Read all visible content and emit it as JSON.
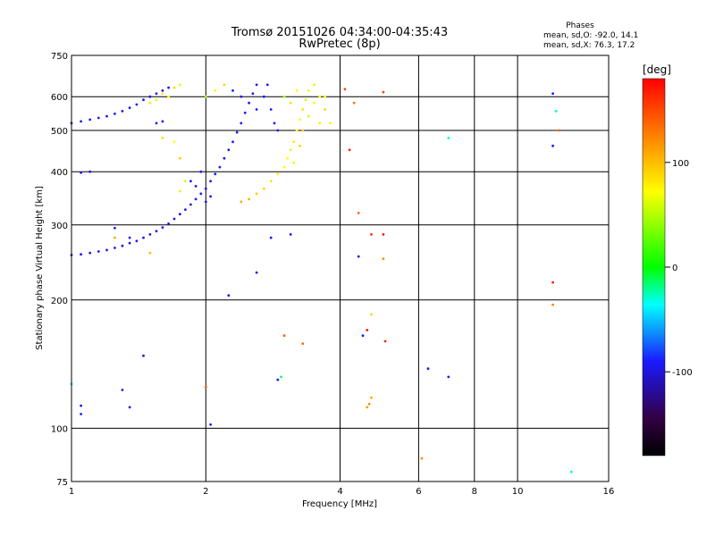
{
  "chart_data": {
    "type": "scatter",
    "title": "Tromsø 20151026 04:34:00-04:35:43",
    "subtitle": "RwPretec (8p)",
    "info_title": "Phases",
    "info_lines": [
      "mean, sd,O: -92.0, 14.1",
      "mean, sd,X:  76.3, 17.2"
    ],
    "xlabel": "Frequency [MHz]",
    "ylabel": "Stationary phase Virtual Height [km]",
    "x_scale": "log",
    "y_scale": "log",
    "xlim": [
      1,
      16
    ],
    "ylim": [
      75,
      750
    ],
    "x_ticks": [
      1,
      2,
      4,
      6,
      8,
      10,
      16
    ],
    "x_tick_labels": [
      "1",
      "2",
      "4",
      "6",
      "8",
      "10",
      "16"
    ],
    "x_grid": [
      2,
      4,
      6,
      8,
      10
    ],
    "y_ticks": [
      75,
      100,
      200,
      300,
      400,
      500,
      600,
      750
    ],
    "y_tick_labels": [
      "75",
      "100",
      "200",
      "300",
      "400",
      "500",
      "600",
      "750"
    ],
    "y_grid": [
      100,
      200,
      300,
      400,
      500,
      600
    ],
    "colorbar": {
      "unit": "[deg]",
      "range": [
        -180,
        180
      ],
      "ticks": [
        100,
        0,
        -100
      ],
      "tick_labels": [
        "100",
        "0",
        "-100"
      ]
    },
    "grid": true,
    "series": [
      {
        "values": [
          {
            "x": 1.0,
            "y": 520,
            "p": -95
          },
          {
            "x": 1.05,
            "y": 525,
            "p": -93
          },
          {
            "x": 1.1,
            "y": 530,
            "p": -90
          },
          {
            "x": 1.15,
            "y": 535,
            "p": -92
          },
          {
            "x": 1.2,
            "y": 540,
            "p": -96
          },
          {
            "x": 1.25,
            "y": 547,
            "p": -90
          },
          {
            "x": 1.3,
            "y": 555,
            "p": -94
          },
          {
            "x": 1.35,
            "y": 565,
            "p": -91
          },
          {
            "x": 1.4,
            "y": 575,
            "p": -93
          },
          {
            "x": 1.45,
            "y": 590,
            "p": -92
          },
          {
            "x": 1.5,
            "y": 600,
            "p": -95
          },
          {
            "x": 1.55,
            "y": 610,
            "p": -90
          },
          {
            "x": 1.6,
            "y": 620,
            "p": -93
          },
          {
            "x": 1.65,
            "y": 630,
            "p": -92
          },
          {
            "x": 1.0,
            "y": 255,
            "p": -92
          },
          {
            "x": 1.05,
            "y": 256,
            "p": -95
          },
          {
            "x": 1.1,
            "y": 258,
            "p": -90
          },
          {
            "x": 1.15,
            "y": 260,
            "p": -93
          },
          {
            "x": 1.2,
            "y": 262,
            "p": -91
          },
          {
            "x": 1.25,
            "y": 265,
            "p": -94
          },
          {
            "x": 1.3,
            "y": 268,
            "p": -92
          },
          {
            "x": 1.35,
            "y": 272,
            "p": -96
          },
          {
            "x": 1.4,
            "y": 275,
            "p": -90
          },
          {
            "x": 1.45,
            "y": 280,
            "p": -93
          },
          {
            "x": 1.5,
            "y": 285,
            "p": -92
          },
          {
            "x": 1.55,
            "y": 290,
            "p": -95
          },
          {
            "x": 1.6,
            "y": 296,
            "p": -91
          },
          {
            "x": 1.65,
            "y": 302,
            "p": -93
          },
          {
            "x": 1.7,
            "y": 310,
            "p": -92
          },
          {
            "x": 1.75,
            "y": 318,
            "p": -94
          },
          {
            "x": 1.8,
            "y": 326,
            "p": -90
          },
          {
            "x": 1.85,
            "y": 335,
            "p": -93
          },
          {
            "x": 1.9,
            "y": 345,
            "p": -92
          },
          {
            "x": 1.95,
            "y": 355,
            "p": -95
          },
          {
            "x": 2.0,
            "y": 365,
            "p": -91
          },
          {
            "x": 2.05,
            "y": 380,
            "p": -93
          },
          {
            "x": 2.1,
            "y": 395,
            "p": -92
          },
          {
            "x": 2.15,
            "y": 410,
            "p": -94
          },
          {
            "x": 2.2,
            "y": 430,
            "p": -90
          },
          {
            "x": 2.25,
            "y": 450,
            "p": -93
          },
          {
            "x": 2.3,
            "y": 470,
            "p": -92
          },
          {
            "x": 2.35,
            "y": 495,
            "p": -95
          },
          {
            "x": 2.4,
            "y": 520,
            "p": -91
          },
          {
            "x": 2.45,
            "y": 550,
            "p": -93
          },
          {
            "x": 2.5,
            "y": 580,
            "p": -92
          },
          {
            "x": 2.55,
            "y": 610,
            "p": -94
          },
          {
            "x": 2.6,
            "y": 640,
            "p": -90
          },
          {
            "x": 1.85,
            "y": 380,
            "p": -92
          },
          {
            "x": 1.9,
            "y": 370,
            "p": -95
          },
          {
            "x": 1.95,
            "y": 400,
            "p": -90
          },
          {
            "x": 2.0,
            "y": 340,
            "p": -93
          },
          {
            "x": 2.05,
            "y": 350,
            "p": -92
          },
          {
            "x": 2.3,
            "y": 620,
            "p": -91
          },
          {
            "x": 2.4,
            "y": 600,
            "p": -93
          },
          {
            "x": 2.6,
            "y": 560,
            "p": -92
          },
          {
            "x": 2.7,
            "y": 600,
            "p": -94
          },
          {
            "x": 2.8,
            "y": 560,
            "p": -90
          },
          {
            "x": 2.9,
            "y": 500,
            "p": -93
          },
          {
            "x": 2.75,
            "y": 640,
            "p": -92
          },
          {
            "x": 2.85,
            "y": 520,
            "p": -95
          },
          {
            "x": 1.25,
            "y": 295,
            "p": -90
          },
          {
            "x": 1.35,
            "y": 280,
            "p": -92
          },
          {
            "x": 1.1,
            "y": 400,
            "p": -94
          },
          {
            "x": 1.05,
            "y": 398,
            "p": -93
          },
          {
            "x": 1.55,
            "y": 520,
            "p": -92
          },
          {
            "x": 1.6,
            "y": 525,
            "p": -90
          },
          {
            "x": 1.3,
            "y": 123,
            "p": -95
          },
          {
            "x": 1.35,
            "y": 112,
            "p": -91
          },
          {
            "x": 1.05,
            "y": 108,
            "p": -93
          },
          {
            "x": 1.45,
            "y": 148,
            "p": -92
          },
          {
            "x": 2.25,
            "y": 205,
            "p": -94
          },
          {
            "x": 2.9,
            "y": 130,
            "p": -90
          },
          {
            "x": 2.8,
            "y": 280,
            "p": -93
          },
          {
            "x": 3.1,
            "y": 285,
            "p": -92
          },
          {
            "x": 4.4,
            "y": 253,
            "p": -95
          },
          {
            "x": 6.3,
            "y": 138,
            "p": -91
          },
          {
            "x": 7.0,
            "y": 132,
            "p": -93
          },
          {
            "x": 12.0,
            "y": 610,
            "p": -92
          },
          {
            "x": 12.0,
            "y": 460,
            "p": -94
          },
          {
            "x": 4.5,
            "y": 165,
            "p": -90
          },
          {
            "x": 2.6,
            "y": 232,
            "p": -93
          },
          {
            "x": 2.05,
            "y": 102,
            "p": -92
          },
          {
            "x": 1.05,
            "y": 113,
            "p": -95
          }
        ]
      },
      {
        "values": [
          {
            "x": 1.5,
            "y": 580,
            "p": 60
          },
          {
            "x": 1.55,
            "y": 590,
            "p": 75
          },
          {
            "x": 1.6,
            "y": 610,
            "p": 80
          },
          {
            "x": 1.65,
            "y": 600,
            "p": 70
          },
          {
            "x": 1.7,
            "y": 630,
            "p": 90
          },
          {
            "x": 1.75,
            "y": 640,
            "p": 65
          },
          {
            "x": 1.6,
            "y": 480,
            "p": 85
          },
          {
            "x": 1.7,
            "y": 470,
            "p": 70
          },
          {
            "x": 1.75,
            "y": 430,
            "p": 95
          },
          {
            "x": 1.8,
            "y": 380,
            "p": 60
          },
          {
            "x": 1.75,
            "y": 360,
            "p": 80
          },
          {
            "x": 2.0,
            "y": 600,
            "p": 50
          },
          {
            "x": 2.1,
            "y": 620,
            "p": 75
          },
          {
            "x": 2.2,
            "y": 640,
            "p": 90
          },
          {
            "x": 2.4,
            "y": 340,
            "p": 110
          },
          {
            "x": 2.5,
            "y": 345,
            "p": 105
          },
          {
            "x": 2.6,
            "y": 355,
            "p": 95
          },
          {
            "x": 2.7,
            "y": 365,
            "p": 90
          },
          {
            "x": 2.8,
            "y": 380,
            "p": 85
          },
          {
            "x": 2.9,
            "y": 395,
            "p": 80
          },
          {
            "x": 3.0,
            "y": 410,
            "p": 75
          },
          {
            "x": 3.05,
            "y": 430,
            "p": 70
          },
          {
            "x": 3.1,
            "y": 450,
            "p": 65
          },
          {
            "x": 3.15,
            "y": 470,
            "p": 80
          },
          {
            "x": 3.2,
            "y": 500,
            "p": 75
          },
          {
            "x": 3.25,
            "y": 530,
            "p": 70
          },
          {
            "x": 3.3,
            "y": 560,
            "p": 85
          },
          {
            "x": 3.35,
            "y": 590,
            "p": 60
          },
          {
            "x": 3.4,
            "y": 620,
            "p": 75
          },
          {
            "x": 3.5,
            "y": 640,
            "p": 80
          },
          {
            "x": 3.6,
            "y": 600,
            "p": 70
          },
          {
            "x": 3.7,
            "y": 560,
            "p": 90
          },
          {
            "x": 3.8,
            "y": 520,
            "p": 65
          },
          {
            "x": 3.0,
            "y": 600,
            "p": 50
          },
          {
            "x": 3.1,
            "y": 580,
            "p": 85
          },
          {
            "x": 3.2,
            "y": 620,
            "p": 70
          },
          {
            "x": 3.3,
            "y": 500,
            "p": 95
          },
          {
            "x": 3.4,
            "y": 540,
            "p": 60
          },
          {
            "x": 3.5,
            "y": 580,
            "p": 75
          },
          {
            "x": 3.6,
            "y": 520,
            "p": 80
          },
          {
            "x": 3.7,
            "y": 600,
            "p": 70
          },
          {
            "x": 3.25,
            "y": 460,
            "p": 90
          },
          {
            "x": 3.15,
            "y": 420,
            "p": 65
          },
          {
            "x": 4.1,
            "y": 625,
            "p": 150
          },
          {
            "x": 4.3,
            "y": 580,
            "p": 130
          },
          {
            "x": 4.4,
            "y": 320,
            "p": 135
          },
          {
            "x": 4.7,
            "y": 285,
            "p": 160
          },
          {
            "x": 5.0,
            "y": 285,
            "p": 170
          },
          {
            "x": 5.0,
            "y": 250,
            "p": 120
          },
          {
            "x": 4.6,
            "y": 170,
            "p": 175
          },
          {
            "x": 4.7,
            "y": 185,
            "p": 90
          },
          {
            "x": 5.05,
            "y": 160,
            "p": 165
          },
          {
            "x": 4.7,
            "y": 118,
            "p": 110
          },
          {
            "x": 4.6,
            "y": 112,
            "p": 115
          },
          {
            "x": 4.65,
            "y": 114,
            "p": 120
          },
          {
            "x": 4.2,
            "y": 450,
            "p": 165
          },
          {
            "x": 3.0,
            "y": 165,
            "p": 140
          },
          {
            "x": 3.3,
            "y": 158,
            "p": 135
          },
          {
            "x": 2.0,
            "y": 125,
            "p": 140
          },
          {
            "x": 1.5,
            "y": 258,
            "p": 100
          },
          {
            "x": 1.25,
            "y": 280,
            "p": 110
          },
          {
            "x": 12.0,
            "y": 220,
            "p": 170
          },
          {
            "x": 12.0,
            "y": 195,
            "p": 125
          },
          {
            "x": 6.1,
            "y": 85,
            "p": 120
          },
          {
            "x": 13.2,
            "y": 79,
            "p": -30
          },
          {
            "x": 7.0,
            "y": 480,
            "p": -30
          },
          {
            "x": 12.2,
            "y": 555,
            "p": -30
          },
          {
            "x": 12.4,
            "y": 500,
            "p": 140
          },
          {
            "x": 2.95,
            "y": 132,
            "p": -20
          },
          {
            "x": 1.0,
            "y": 127,
            "p": -40
          },
          {
            "x": 5.0,
            "y": 615,
            "p": 150
          }
        ]
      }
    ]
  }
}
